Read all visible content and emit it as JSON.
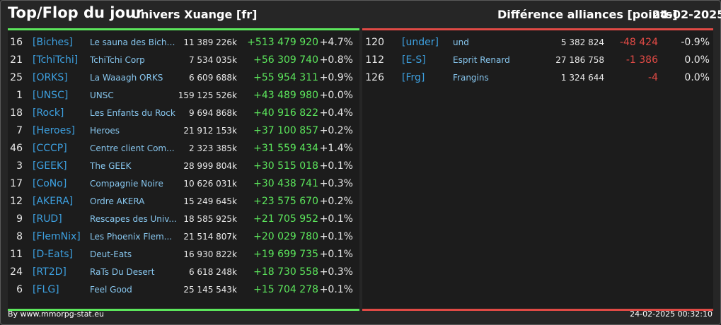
{
  "header": {
    "title": "Top/Flop du jour",
    "universe": "Univers Xuange [fr]",
    "diff_title": "Différence alliances [points]",
    "date": "24-02-2025"
  },
  "colors": {
    "gain": "#5ce65c",
    "loss": "#e04a45",
    "tag": "#3da0e0",
    "name": "#87c6ee",
    "background": "#262626",
    "panel": "#1c1c1c"
  },
  "top": [
    {
      "rank": "16",
      "tag": "[Biches]",
      "name": "Le sauna des Biche...",
      "points": "11 389 226k",
      "diff": "+513 479 920",
      "pct": "+4.7%"
    },
    {
      "rank": "21",
      "tag": "[TchiTchi]",
      "name": "TchiTchi Corp",
      "points": "7 534 035k",
      "diff": "+56 309 740",
      "pct": "+0.8%"
    },
    {
      "rank": "25",
      "tag": "[ORKS]",
      "name": "La Waaagh ORKS",
      "points": "6 609 688k",
      "diff": "+55 954 311",
      "pct": "+0.9%"
    },
    {
      "rank": "1",
      "tag": "[UNSC]",
      "name": "UNSC",
      "points": "159 125 526k",
      "diff": "+43 489 980",
      "pct": "+0.0%"
    },
    {
      "rank": "18",
      "tag": "[Rock]",
      "name": "Les Enfants du Rock",
      "points": "9 694 868k",
      "diff": "+40 916 822",
      "pct": "+0.4%"
    },
    {
      "rank": "7",
      "tag": "[Heroes]",
      "name": "Heroes",
      "points": "21 912 153k",
      "diff": "+37 100 857",
      "pct": "+0.2%"
    },
    {
      "rank": "46",
      "tag": "[CCCP]",
      "name": "Centre client Com...",
      "points": "2 323 385k",
      "diff": "+31 559 434",
      "pct": "+1.4%"
    },
    {
      "rank": "3",
      "tag": "[GEEK]",
      "name": "The GEEK",
      "points": "28 999 804k",
      "diff": "+30 515 018",
      "pct": "+0.1%"
    },
    {
      "rank": "17",
      "tag": "[CoNo]",
      "name": "Compagnie Noire",
      "points": "10 626 031k",
      "diff": "+30 438 741",
      "pct": "+0.3%"
    },
    {
      "rank": "12",
      "tag": "[AKERA]",
      "name": "Ordre AKERA",
      "points": "15 249 645k",
      "diff": "+23 575 670",
      "pct": "+0.2%"
    },
    {
      "rank": "9",
      "tag": "[RUD]",
      "name": "Rescapes des Univ...",
      "points": "18 585 925k",
      "diff": "+21 705 952",
      "pct": "+0.1%"
    },
    {
      "rank": "8",
      "tag": "[FlemNix]",
      "name": "Les Phoenix Flem...",
      "points": "21 514 807k",
      "diff": "+20 029 780",
      "pct": "+0.1%"
    },
    {
      "rank": "11",
      "tag": "[D-Eats]",
      "name": "Deut-Eats",
      "points": "16 930 822k",
      "diff": "+19 699 735",
      "pct": "+0.1%"
    },
    {
      "rank": "24",
      "tag": "[RT2D]",
      "name": "RaTs Du Desert",
      "points": "6 618 248k",
      "diff": "+18 730 558",
      "pct": "+0.3%"
    },
    {
      "rank": "6",
      "tag": "[FLG]",
      "name": "Feel Good",
      "points": "25 145 543k",
      "diff": "+15 704 278",
      "pct": "+0.1%"
    }
  ],
  "flop": [
    {
      "rank": "120",
      "tag": "[under]",
      "name": "und",
      "points": "5 382 824",
      "diff": "-48 424",
      "pct": "-0.9%"
    },
    {
      "rank": "112",
      "tag": "[E-S]",
      "name": "Esprit Renard",
      "points": "27 186 758",
      "diff": "-1 386",
      "pct": "0.0%"
    },
    {
      "rank": "126",
      "tag": "[Frg]",
      "name": "Frangins",
      "points": "1 324 644",
      "diff": "-4",
      "pct": "0.0%"
    }
  ],
  "footer": {
    "credit": "By www.mmorpg-stat.eu",
    "timestamp": "24-02-2025 00:32:10"
  }
}
